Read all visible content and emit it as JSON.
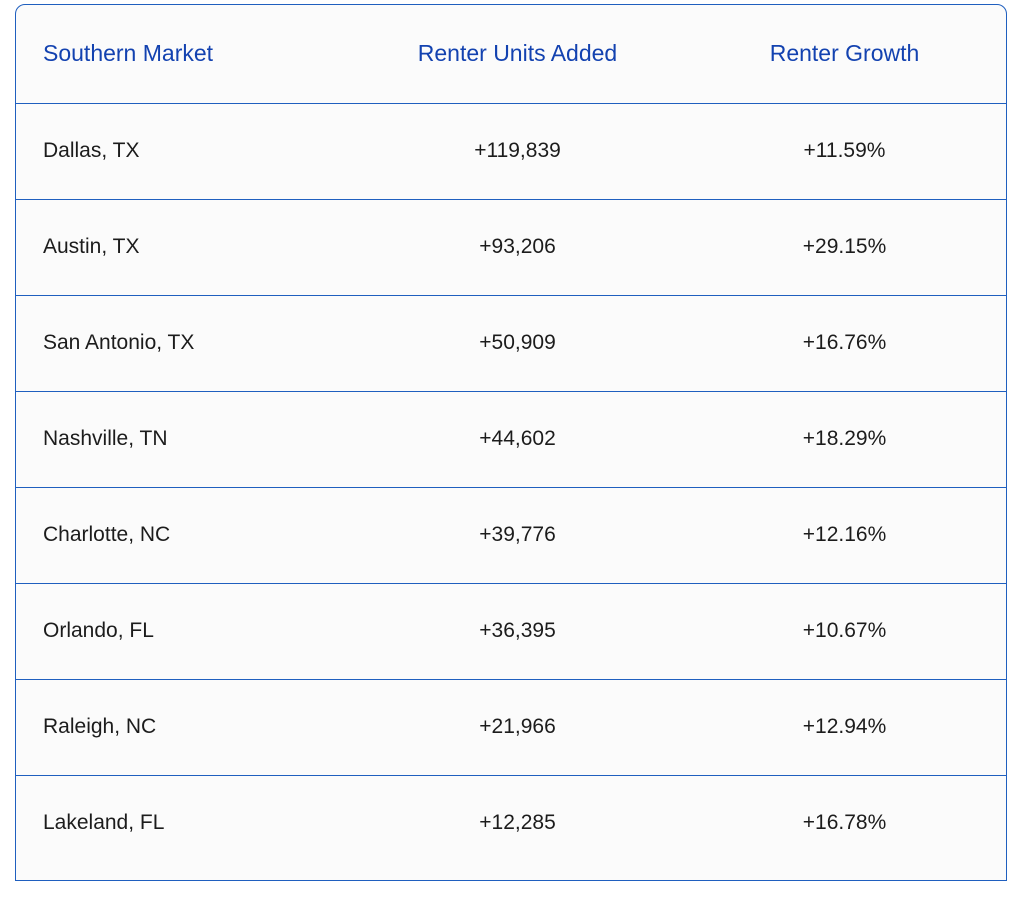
{
  "table": {
    "headers": [
      "Southern Market",
      "Renter Units Added",
      "Renter Growth"
    ],
    "rows": [
      {
        "market": "Dallas, TX",
        "units": "+119,839",
        "growth": "+11.59%"
      },
      {
        "market": "Austin, TX",
        "units": "+93,206",
        "growth": "+29.15%"
      },
      {
        "market": "San Antonio, TX",
        "units": "+50,909",
        "growth": "+16.76%"
      },
      {
        "market": "Nashville, TN",
        "units": "+44,602",
        "growth": "+18.29%"
      },
      {
        "market": "Charlotte, NC",
        "units": "+39,776",
        "growth": "+12.16%"
      },
      {
        "market": "Orlando, FL",
        "units": "+36,395",
        "growth": "+10.67%"
      },
      {
        "market": "Raleigh, NC",
        "units": "+21,966",
        "growth": "+12.94%"
      },
      {
        "market": "Lakeland, FL",
        "units": "+12,285",
        "growth": "+16.78%"
      }
    ]
  },
  "colors": {
    "header_text": "#1342b0",
    "border": "#1f5fbf",
    "body_text": "#1c1c1c",
    "background": "#fbfbfb"
  }
}
